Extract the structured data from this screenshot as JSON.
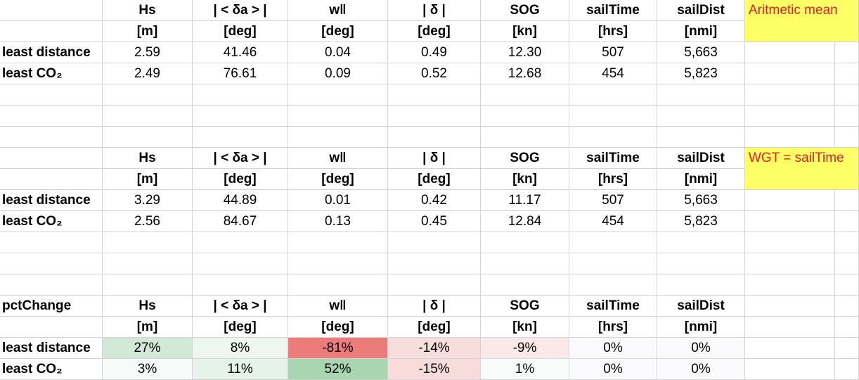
{
  "mean_table": {
    "note": "Aritmetic mean",
    "headers": [
      "Hs",
      "| < δa > |",
      "w‖",
      "| δ |",
      "SOG",
      "sailTime",
      "sailDist"
    ],
    "units": [
      "[m]",
      "[deg]",
      "[deg]",
      "[deg]",
      "[kn]",
      "[hrs]",
      "[nmi]"
    ],
    "rows": [
      {
        "label": "least distance",
        "values": [
          "2.59",
          "41.46",
          "0.04",
          "0.49",
          "12.30",
          "507",
          "5,663"
        ]
      },
      {
        "label": "least CO₂",
        "values": [
          "2.49",
          "76.61",
          "0.09",
          "0.52",
          "12.68",
          "454",
          "5,823"
        ]
      }
    ]
  },
  "wgt_table": {
    "note": "WGT = sailTime",
    "headers": [
      "Hs",
      "| < δa > |",
      "w‖",
      "| δ |",
      "SOG",
      "sailTime",
      "sailDist"
    ],
    "units": [
      "[m]",
      "[deg]",
      "[deg]",
      "[deg]",
      "[kn]",
      "[hrs]",
      "[nmi]"
    ],
    "rows": [
      {
        "label": "least distance",
        "values": [
          "3.29",
          "44.89",
          "0.01",
          "0.42",
          "11.17",
          "507",
          "5,663"
        ]
      },
      {
        "label": "least CO₂",
        "values": [
          "2.56",
          "84.67",
          "0.13",
          "0.45",
          "12.84",
          "454",
          "5,823"
        ]
      }
    ]
  },
  "pct_table": {
    "title": "pctChange",
    "headers": [
      "Hs",
      "| < δa > |",
      "w‖",
      "| δ |",
      "SOG",
      "sailTime",
      "sailDist"
    ],
    "units": [
      "[m]",
      "[deg]",
      "[deg]",
      "[deg]",
      "[kn]",
      "[hrs]",
      "[nmi]"
    ],
    "rows": [
      {
        "label": "least distance",
        "values": [
          "27%",
          "8%",
          "-81%",
          "-14%",
          "-9%",
          "0%",
          "0%"
        ],
        "colors": [
          "#d1e9d6",
          "#edf6ef",
          "#eb7c7a",
          "#f8dddd",
          "#fbe9ea",
          "#fbfafd",
          "#fbfafd"
        ]
      },
      {
        "label": "least CO₂",
        "values": [
          "3%",
          "11%",
          "52%",
          "-15%",
          "1%",
          "0%",
          "0%"
        ],
        "colors": [
          "#f6faf8",
          "#e6f3e8",
          "#a8d6b0",
          "#f8dcdc",
          "#fafcfb",
          "#fbfafd",
          "#fbfafd"
        ]
      }
    ]
  }
}
